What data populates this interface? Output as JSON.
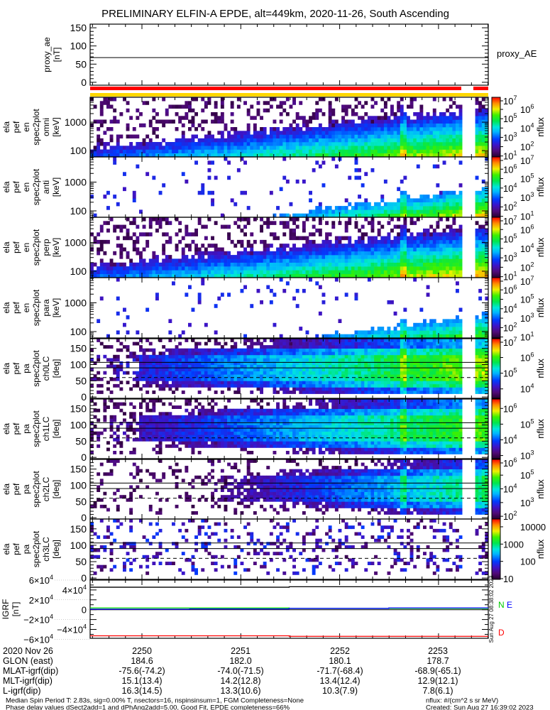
{
  "title": "PRELIMINARY ELFIN-A EPDE, alt=449km, 2020-11-26, South Ascending",
  "chart_data": {
    "type": "heatmap",
    "x_ticks": [
      "2250",
      "2251",
      "2252",
      "2253"
    ],
    "proxy_ae": {
      "ylabel": [
        "proxy_ae",
        "[nT]"
      ],
      "right_label": "proxy_AE",
      "ylim": [
        -8,
        160
      ],
      "yticks": [
        {
          "value": 0,
          "label": "0"
        },
        {
          "value": 50,
          "label": "50"
        },
        {
          "value": 100,
          "label": "100"
        },
        {
          "value": 150,
          "label": "150"
        }
      ],
      "value": 68
    },
    "flag_bars": {
      "red_color": "#ff0000",
      "yellow_color": "#ffd700"
    },
    "zlabel": "nflux",
    "energy_panels": [
      {
        "ylabel": [
          "ela",
          "pef",
          "en",
          "spec2plot",
          "omni",
          "[keV]"
        ],
        "ylim_keV": [
          60,
          7500
        ],
        "yticks": [
          {
            "value": 100,
            "label": "100"
          },
          {
            "value": 1000,
            "label": "1000"
          }
        ],
        "zlim_log": [
          0.9,
          7.3
        ],
        "zticks": [
          {
            "base": "10",
            "exp": "7",
            "log": 7
          },
          {
            "base": "10",
            "exp": "6",
            "log": 6
          },
          {
            "base": "10",
            "exp": "5",
            "log": 5
          },
          {
            "base": "10",
            "exp": "4",
            "log": 4
          },
          {
            "base": "10",
            "exp": "3",
            "log": 3
          },
          {
            "base": "10",
            "exp": "2",
            "log": 2
          },
          {
            "base": "10",
            "exp": "1",
            "log": 1
          }
        ],
        "model": {
          "a": 0.3,
          "b": 0.55,
          "k": 0.4,
          "cut": 0.18,
          "sp": 0.3,
          "spLo": 0.03
        }
      },
      {
        "ylabel": [
          "ela",
          "pef",
          "en",
          "spec2plot",
          "anti",
          "[keV]"
        ],
        "ylim_keV": [
          60,
          7500
        ],
        "yticks": [
          {
            "value": 100,
            "label": "100"
          },
          {
            "value": 1000,
            "label": "1000"
          }
        ],
        "zlim_log": [
          0.9,
          7.3
        ],
        "zticks": [
          {
            "base": "10",
            "exp": "7",
            "log": 7
          },
          {
            "base": "10",
            "exp": "6",
            "log": 6
          },
          {
            "base": "10",
            "exp": "5",
            "log": 5
          },
          {
            "base": "10",
            "exp": "4",
            "log": 4
          },
          {
            "base": "10",
            "exp": "3",
            "log": 3
          },
          {
            "base": "10",
            "exp": "2",
            "log": 2
          },
          {
            "base": "10",
            "exp": "1",
            "log": 1
          }
        ],
        "model": {
          "a": -0.05,
          "b": 0.9,
          "k": 0.5,
          "cut": 0.35,
          "sp": 0.06,
          "spLo": 0.18
        }
      },
      {
        "ylabel": [
          "ela",
          "pef",
          "en",
          "spec2plot",
          "perp",
          "[keV]"
        ],
        "ylim_keV": [
          60,
          7500
        ],
        "yticks": [
          {
            "value": 100,
            "label": "100"
          },
          {
            "value": 1000,
            "label": "1000"
          }
        ],
        "zlim_log": [
          0.9,
          7.3
        ],
        "zticks": [
          {
            "base": "10",
            "exp": "7",
            "log": 7
          },
          {
            "base": "10",
            "exp": "6",
            "log": 6
          },
          {
            "base": "10",
            "exp": "5",
            "log": 5
          },
          {
            "base": "10",
            "exp": "4",
            "log": 4
          },
          {
            "base": "10",
            "exp": "3",
            "log": 3
          },
          {
            "base": "10",
            "exp": "2",
            "log": 2
          },
          {
            "base": "10",
            "exp": "1",
            "log": 1
          }
        ],
        "model": {
          "a": 0.33,
          "b": 0.55,
          "k": 0.4,
          "cut": 0.18,
          "sp": 0.3,
          "spLo": 0.03
        }
      },
      {
        "ylabel": [
          "ela",
          "pef",
          "en",
          "spec2plot",
          "para",
          "[keV]"
        ],
        "ylim_keV": [
          60,
          7500
        ],
        "yticks": [
          {
            "value": 100,
            "label": "100"
          },
          {
            "value": 1000,
            "label": "1000"
          }
        ],
        "zlim_log": [
          0.9,
          7.3
        ],
        "zticks": [
          {
            "base": "10",
            "exp": "7",
            "log": 7
          },
          {
            "base": "10",
            "exp": "6",
            "log": 6
          },
          {
            "base": "10",
            "exp": "5",
            "log": 5
          },
          {
            "base": "10",
            "exp": "4",
            "log": 4
          },
          {
            "base": "10",
            "exp": "3",
            "log": 3
          },
          {
            "base": "10",
            "exp": "2",
            "log": 2
          },
          {
            "base": "10",
            "exp": "1",
            "log": 1
          }
        ],
        "model": {
          "a": -0.12,
          "b": 0.85,
          "k": 0.5,
          "cut": 0.35,
          "sp": 0.05,
          "spLo": 0.18
        }
      }
    ],
    "pa_panels": [
      {
        "ylabel": [
          "ela",
          "pef",
          "pa",
          "spec2plot",
          "ch0LC",
          "[deg]"
        ],
        "ylim_deg": [
          -4,
          180
        ],
        "yticks": [
          {
            "value": 0,
            "label": "0"
          },
          {
            "value": 50,
            "label": "50"
          },
          {
            "value": 100,
            "label": "100"
          },
          {
            "value": 150,
            "label": "150"
          }
        ],
        "lines_deg": {
          "solid": [
            90,
            107
          ],
          "dashed": [
            60
          ]
        },
        "zlim_log": [
          3.4,
          7.2
        ],
        "zticks": [
          {
            "base": "10",
            "exp": "7",
            "log": 7
          },
          {
            "base": "10",
            "exp": "6",
            "log": 6
          },
          {
            "base": "10",
            "exp": "5",
            "log": 5
          },
          {
            "base": "10",
            "exp": "4",
            "log": 4
          }
        ],
        "model": {
          "a": 0.15,
          "b": 0.6,
          "cut": 0.12,
          "sp": 0.25,
          "spLo": 0.02,
          "early": 0.12
        }
      },
      {
        "ylabel": [
          "ela",
          "pef",
          "pa",
          "spec2plot",
          "ch1LC",
          "[deg]"
        ],
        "ylim_deg": [
          -4,
          180
        ],
        "yticks": [
          {
            "value": 0,
            "label": "0"
          },
          {
            "value": 50,
            "label": "50"
          },
          {
            "value": 100,
            "label": "100"
          },
          {
            "value": 150,
            "label": "150"
          }
        ],
        "lines_deg": {
          "solid": [
            90,
            107
          ],
          "dashed": [
            60
          ]
        },
        "zlim_log": [
          2.8,
          6.6
        ],
        "zticks": [
          {
            "base": "10",
            "exp": "6",
            "log": 6
          },
          {
            "base": "10",
            "exp": "5",
            "log": 5
          },
          {
            "base": "10",
            "exp": "4",
            "log": 4
          },
          {
            "base": "10",
            "exp": "3",
            "log": 3
          }
        ],
        "model": {
          "a": 0.1,
          "b": 0.6,
          "cut": 0.12,
          "sp": 0.25,
          "spLo": 0.02,
          "early": 0.12
        }
      },
      {
        "ylabel": [
          "ela",
          "pef",
          "pa",
          "spec2plot",
          "ch2LC",
          "[deg]"
        ],
        "ylim_deg": [
          -4,
          180
        ],
        "yticks": [
          {
            "value": 0,
            "label": "0"
          },
          {
            "value": 50,
            "label": "50"
          },
          {
            "value": 100,
            "label": "100"
          },
          {
            "value": 150,
            "label": "150"
          }
        ],
        "lines_deg": {
          "solid": [
            90,
            107
          ],
          "dashed": [
            60
          ]
        },
        "zlim_log": [
          1.8,
          6.15
        ],
        "zticks": [
          {
            "base": "10",
            "exp": "6",
            "log": 6
          },
          {
            "base": "10",
            "exp": "5",
            "log": 5
          },
          {
            "base": "10",
            "exp": "4",
            "log": 4
          },
          {
            "base": "10",
            "exp": "3",
            "log": 3
          },
          {
            "base": "10",
            "exp": "2",
            "log": 2
          }
        ],
        "model": {
          "a": -0.15,
          "b": 0.75,
          "cut": 0.12,
          "sp": 0.2,
          "spLo": 0.02,
          "early": 0.3
        }
      },
      {
        "ylabel": [
          "ela",
          "pef",
          "pa",
          "spec2plot",
          "ch3LC",
          "[deg]"
        ],
        "ylim_deg": [
          -4,
          180
        ],
        "yticks": [
          {
            "value": 0,
            "label": "0"
          },
          {
            "value": 50,
            "label": "50"
          },
          {
            "value": 100,
            "label": "100"
          },
          {
            "value": 150,
            "label": "150"
          }
        ],
        "lines_deg": {
          "solid": [
            90,
            107
          ],
          "dashed": [
            60
          ]
        },
        "zlim_log": [
          0.96,
          4.45
        ],
        "zticks": [
          {
            "base": "10000",
            "exp": "",
            "log": 4
          },
          {
            "base": "1000",
            "exp": "",
            "log": 3
          },
          {
            "base": "100",
            "exp": "",
            "log": 2
          },
          {
            "base": "10",
            "exp": "",
            "log": 1
          }
        ],
        "model": {
          "a": -0.5,
          "b": 0.3,
          "cut": 0.12,
          "sp": 0.22,
          "spLo": 0.05,
          "early": 0
        }
      }
    ],
    "igrf": {
      "ylabel": [
        "IGRF",
        "[nT]"
      ],
      "ylim": [
        -58000,
        60000
      ],
      "yticks": [
        {
          "value": 60000,
          "m": "6×10",
          "e": "4"
        },
        {
          "value": 40000,
          "m": "4×10",
          "e": "4"
        },
        {
          "value": 20000,
          "m": "2×10",
          "e": "4"
        },
        {
          "value": 0,
          "m": "0",
          "e": ""
        },
        {
          "value": -20000,
          "m": "−2×10",
          "e": "4"
        },
        {
          "value": -40000,
          "m": "−4×10",
          "e": "4"
        },
        {
          "value": -60000,
          "m": "−6×10",
          "e": "4"
        }
      ],
      "series": [
        {
          "name": "total",
          "color": "#000000",
          "values": [
            45500,
            46500
          ]
        },
        {
          "name": "N",
          "color": "#00dd00",
          "values": [
            3500,
            2500
          ]
        },
        {
          "name": "E",
          "color": "#0000ff",
          "values": [
            1000,
            1500,
            2500,
            3500
          ]
        },
        {
          "name": "D",
          "color": "#ff0000",
          "values": [
            -53000,
            -54000
          ]
        }
      ],
      "legend": {
        "n": "N",
        "e": "E",
        "d": "D"
      },
      "timestamp": "Sun Aug 27 08:38:02 2023"
    }
  },
  "orbit_table": [
    {
      "label": "2020 Nov 26",
      "values": [
        "2250",
        "2251",
        "2252",
        "2253"
      ]
    },
    {
      "label": "GLON (east)",
      "values": [
        "184.6",
        "182.0",
        "180.1",
        "178.7"
      ]
    },
    {
      "label": "MLAT-igrf(dip)",
      "values": [
        "-75.6(-74.2)",
        "-74.0(-71.5)",
        "-71.7(-68.4)",
        "-68.9(-65.1)"
      ]
    },
    {
      "label": "MLT-igrf(dip)",
      "values": [
        "15.1(13.4)",
        "14.2(12.8)",
        "13.4(12.4)",
        "12.9(12.1)"
      ]
    },
    {
      "label": "L-igrf(dip)",
      "values": [
        "16.3(14.5)",
        "13.3(10.6)",
        "10.3(7.9)",
        "7.8(6.1)"
      ]
    }
  ],
  "footer": {
    "line1": "Median Spin Period T: 2.83s, sig=0.00% T, nsectors=16, nspinsinsum=1, FGM Completeness=None",
    "line2": "Phase delay values dSect2add=1 and dPhAng2add=5.00, Good Fit, EPDE completeness=66%",
    "units": "nflux: #/(cm^2 s sr MeV)",
    "created": "Created: Sun Aug 27 16:39:02 2023"
  }
}
